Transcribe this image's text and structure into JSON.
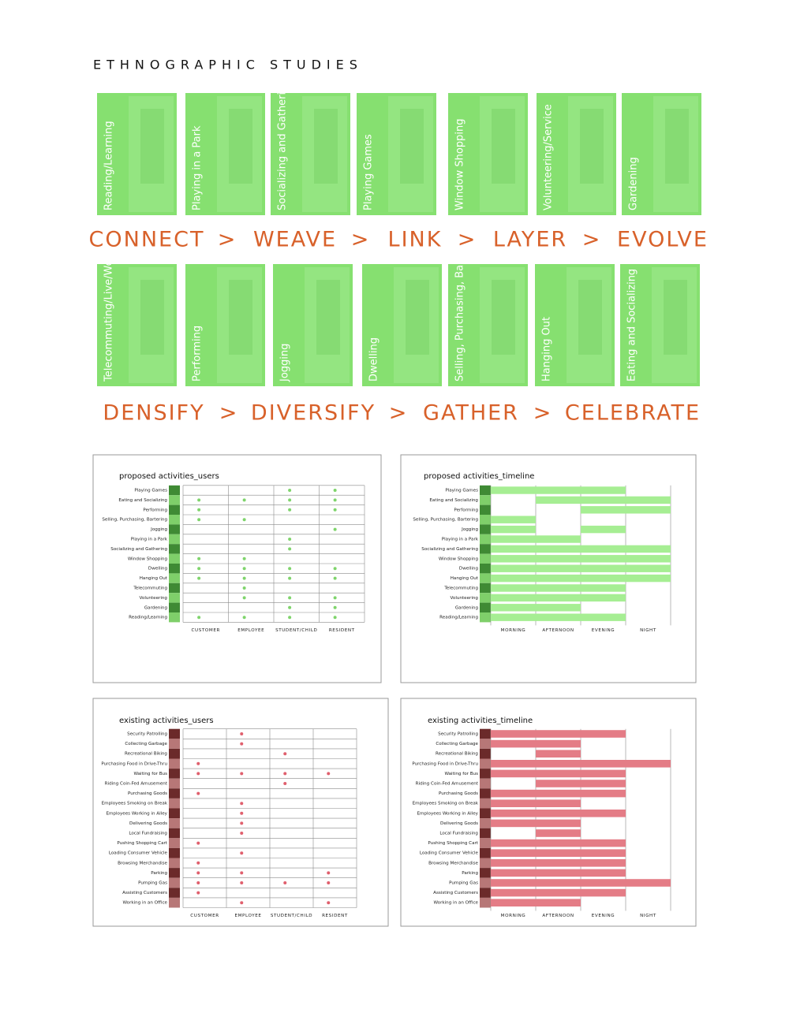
{
  "title": "ETHNOGRAPHIC STUDIES",
  "separator": ">",
  "cards_top": [
    "Reading/Learning",
    "Playing in a Park",
    "Socializing and Gathering",
    "Playing Games",
    "Window Shopping",
    "Volunteering/Service",
    "Gardening"
  ],
  "flow_top": [
    "CONNECT",
    "WEAVE",
    "LINK",
    "LAYER",
    "EVOLVE"
  ],
  "cards_bottom": [
    "Telecommuting/Live/Work",
    "Performing",
    "Jogging",
    "Dwelling",
    "Selling, Purchasing, Bartering",
    "Hanging Out",
    "Eating and Socializing"
  ],
  "flow_bottom": [
    "DENSIFY",
    "DIVERSIFY",
    "GATHER",
    "CELEBRATE"
  ],
  "chart_data": [
    {
      "type": "dot-matrix",
      "title": "proposed activities_users",
      "color": "#7fd46c",
      "categories": [
        "Playing Games",
        "Eating and Socializing",
        "Performing",
        "Selling, Purchasing, Bartering",
        "Jogging",
        "Playing in a Park",
        "Socializing and Gathering",
        "Window Shopping",
        "Dwelling",
        "Hanging Out",
        "Telecommuting",
        "Volunteering",
        "Gardening",
        "Reading/Learning"
      ],
      "columns": [
        "CUSTOMER",
        "EMPLOYEE",
        "STUDENT/CHILD",
        "RESIDENT"
      ],
      "values": [
        [
          0,
          0,
          1,
          1
        ],
        [
          1,
          1,
          1,
          1
        ],
        [
          1,
          0,
          1,
          1
        ],
        [
          1,
          1,
          0,
          0
        ],
        [
          0,
          0,
          0,
          1
        ],
        [
          0,
          0,
          1,
          0
        ],
        [
          0,
          0,
          1,
          0
        ],
        [
          1,
          1,
          0,
          0
        ],
        [
          1,
          1,
          1,
          1
        ],
        [
          1,
          1,
          1,
          1
        ],
        [
          0,
          1,
          0,
          0
        ],
        [
          0,
          1,
          1,
          1
        ],
        [
          0,
          0,
          1,
          1
        ],
        [
          1,
          1,
          1,
          1
        ]
      ]
    },
    {
      "type": "timeline",
      "title": "proposed activities_timeline",
      "color": "#a6ee93",
      "categories": [
        "Playing Games",
        "Eating and Socializing",
        "Performing",
        "Selling, Purchasing, Bartering",
        "Jogging",
        "Playing in a Park",
        "Socializing and Gathering",
        "Window Shopping",
        "Dwelling",
        "Hanging Out",
        "Telecommuting",
        "Volunteering",
        "Gardening",
        "Reading/Learning"
      ],
      "columns": [
        "MORNING",
        "AFTERNOON",
        "EVENING",
        "NIGHT"
      ],
      "values": [
        [
          1,
          1,
          1,
          0
        ],
        [
          0,
          1,
          1,
          1
        ],
        [
          0,
          0,
          1,
          1
        ],
        [
          1,
          0,
          0,
          0
        ],
        [
          1,
          0,
          1,
          0
        ],
        [
          1,
          1,
          0,
          0
        ],
        [
          1,
          1,
          1,
          1
        ],
        [
          1,
          1,
          1,
          1
        ],
        [
          1,
          1,
          1,
          1
        ],
        [
          1,
          1,
          1,
          1
        ],
        [
          1,
          1,
          1,
          0
        ],
        [
          1,
          1,
          1,
          0
        ],
        [
          1,
          1,
          0,
          0
        ],
        [
          1,
          1,
          1,
          0
        ]
      ]
    },
    {
      "type": "dot-matrix",
      "title": "existing activities_users",
      "color": "#e0606e",
      "categories": [
        "Security Patrolling",
        "Collecting Garbage",
        "Recreational Biking",
        "Purchasing Food in Drive-Thru",
        "Waiting for Bus",
        "Riding Coin-Fed Amusement",
        "Purchasing Goods",
        "Employees Smoking on Break",
        "Employees Working in Alley",
        "Delivering Goods",
        "Local Fundraising",
        "Pushing Shopping Cart",
        "Loading Consumer Vehicle",
        "Browsing Merchandise",
        "Parking",
        "Pumping Gas",
        "Assisting Customers",
        "Working in an Office"
      ],
      "columns": [
        "CUSTOMER",
        "EMPLOYEE",
        "STUDENT/CHILD",
        "RESIDENT"
      ],
      "values": [
        [
          0,
          1,
          0,
          0
        ],
        [
          0,
          1,
          0,
          0
        ],
        [
          0,
          0,
          1,
          0
        ],
        [
          1,
          0,
          0,
          0
        ],
        [
          1,
          1,
          1,
          1
        ],
        [
          0,
          0,
          1,
          0
        ],
        [
          1,
          0,
          0,
          0
        ],
        [
          0,
          1,
          0,
          0
        ],
        [
          0,
          1,
          0,
          0
        ],
        [
          0,
          1,
          0,
          0
        ],
        [
          0,
          1,
          0,
          0
        ],
        [
          1,
          0,
          0,
          0
        ],
        [
          0,
          1,
          0,
          0
        ],
        [
          1,
          0,
          0,
          0
        ],
        [
          1,
          1,
          0,
          1
        ],
        [
          1,
          1,
          1,
          1
        ],
        [
          1,
          0,
          0,
          0
        ],
        [
          0,
          1,
          0,
          1
        ]
      ]
    },
    {
      "type": "timeline",
      "title": "existing activities_timeline",
      "color": "#e47c86",
      "categories": [
        "Security Patrolling",
        "Collecting Garbage",
        "Recreational Biking",
        "Purchasing Food in Drive-Thru",
        "Waiting for Bus",
        "Riding Coin-Fed Amusement",
        "Purchasing Goods",
        "Employees Smoking on Break",
        "Employees Working in Alley",
        "Delivering Goods",
        "Local Fundraising",
        "Pushing Shopping Cart",
        "Loading Consumer Vehicle",
        "Browsing Merchandise",
        "Parking",
        "Pumping Gas",
        "Assisting Customers",
        "Working in an Office"
      ],
      "columns": [
        "MORNING",
        "AFTERNOON",
        "EVENING",
        "NIGHT"
      ],
      "values": [
        [
          1,
          1,
          1,
          0
        ],
        [
          1,
          1,
          0,
          0
        ],
        [
          0,
          1,
          0,
          0
        ],
        [
          1,
          1,
          1,
          1
        ],
        [
          1,
          1,
          1,
          0
        ],
        [
          0,
          1,
          1,
          0
        ],
        [
          1,
          1,
          1,
          0
        ],
        [
          1,
          1,
          0,
          0
        ],
        [
          1,
          1,
          1,
          0
        ],
        [
          1,
          1,
          0,
          0
        ],
        [
          0,
          1,
          0,
          0
        ],
        [
          1,
          1,
          1,
          0
        ],
        [
          1,
          1,
          1,
          0
        ],
        [
          1,
          1,
          1,
          0
        ],
        [
          1,
          1,
          1,
          0
        ],
        [
          1,
          1,
          1,
          1
        ],
        [
          1,
          1,
          1,
          0
        ],
        [
          1,
          1,
          0,
          0
        ]
      ]
    }
  ]
}
